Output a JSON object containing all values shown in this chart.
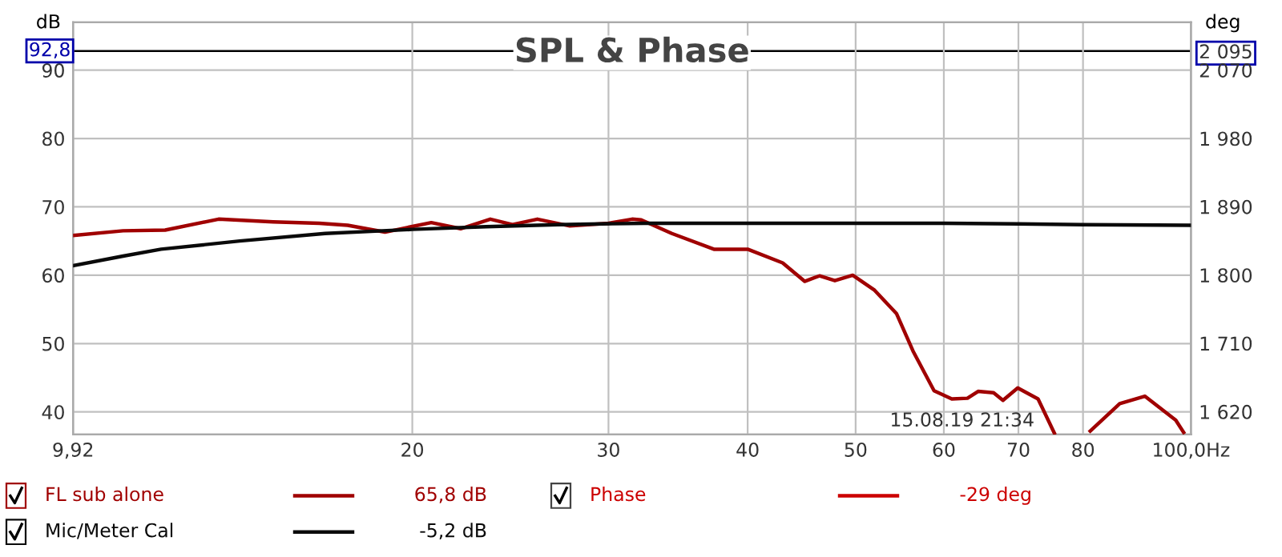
{
  "chart_data": {
    "type": "line",
    "title": "SPL & Phase",
    "ylabel": "dB",
    "y2label": "deg",
    "xlim": [
      9.92,
      100
    ],
    "xticks": [
      {
        "value": 9.92,
        "label": "9,92"
      },
      20,
      30,
      40,
      50,
      60,
      70,
      80,
      {
        "value": 100,
        "label": "100,0Hz"
      }
    ],
    "ylim": [
      36.7,
      97
    ],
    "yticks": [
      40,
      50,
      60,
      70,
      80,
      90
    ],
    "y2lim": [
      1590,
      2133
    ],
    "y2ticks": [
      {
        "value": 2095,
        "label": "2 095"
      },
      {
        "value": 1620,
        "label": "1 620"
      },
      {
        "value": 1710,
        "label": "1 710"
      },
      {
        "value": 1800,
        "label": "1 800"
      },
      {
        "value": 1890,
        "label": "1 890"
      },
      {
        "value": 1980,
        "label": "1 980"
      },
      {
        "value": 2070,
        "label": "2 070"
      }
    ],
    "log": "x",
    "grid": true,
    "legend": "bottom",
    "ref_lines": [
      {
        "axis": "y",
        "value": 92.8,
        "label": "92,8",
        "color": "#000000"
      }
    ],
    "series": [
      {
        "name": "FL sub alone",
        "color": "#a00000",
        "x": [
          9.92,
          11,
          12,
          13.4,
          15,
          16.5,
          17.5,
          18.9,
          20.8,
          22.1,
          23.5,
          24.6,
          25.9,
          27.7,
          30,
          31.5,
          32.1,
          34.2,
          37.3,
          40,
          43,
          45,
          46.4,
          47.9,
          49.7,
          52,
          54.4,
          56.3,
          58.8,
          61,
          63,
          64.4,
          66.5,
          67.8,
          69.9,
          72.9,
          75.4,
          77,
          81.2,
          86.3,
          90.9,
          96.9,
          98.5
        ],
        "values": [
          65.8,
          66.5,
          66.6,
          68.2,
          67.8,
          67.6,
          67.3,
          66.3,
          67.7,
          66.8,
          68.2,
          67.4,
          68.2,
          67.2,
          67.6,
          68.2,
          68.1,
          66.1,
          63.8,
          63.8,
          61.8,
          59.1,
          59.9,
          59.2,
          60.0,
          57.8,
          54.4,
          48.9,
          43.1,
          41.9,
          42.0,
          43.0,
          42.8,
          41.7,
          43.5,
          41.9,
          36.9,
          null,
          37.2,
          41.2,
          42.3,
          38.8,
          37.0
        ]
      },
      {
        "name": "Mic/Meter Cal",
        "color": "#0a0a0a",
        "x": [
          9.92,
          11,
          11.9,
          14,
          16.7,
          20,
          23.3,
          27,
          32.3,
          40,
          50,
          60,
          70,
          80,
          100
        ],
        "values": [
          61.4,
          62.8,
          63.8,
          65.0,
          66.1,
          66.7,
          67.1,
          67.4,
          67.6,
          67.6,
          67.6,
          67.6,
          67.5,
          67.4,
          67.3
        ]
      }
    ],
    "annotations": [
      "65,8 dB",
      "-5,2 dB",
      "Phase",
      "-29 deg",
      "15.08.19 21:34"
    ]
  }
}
